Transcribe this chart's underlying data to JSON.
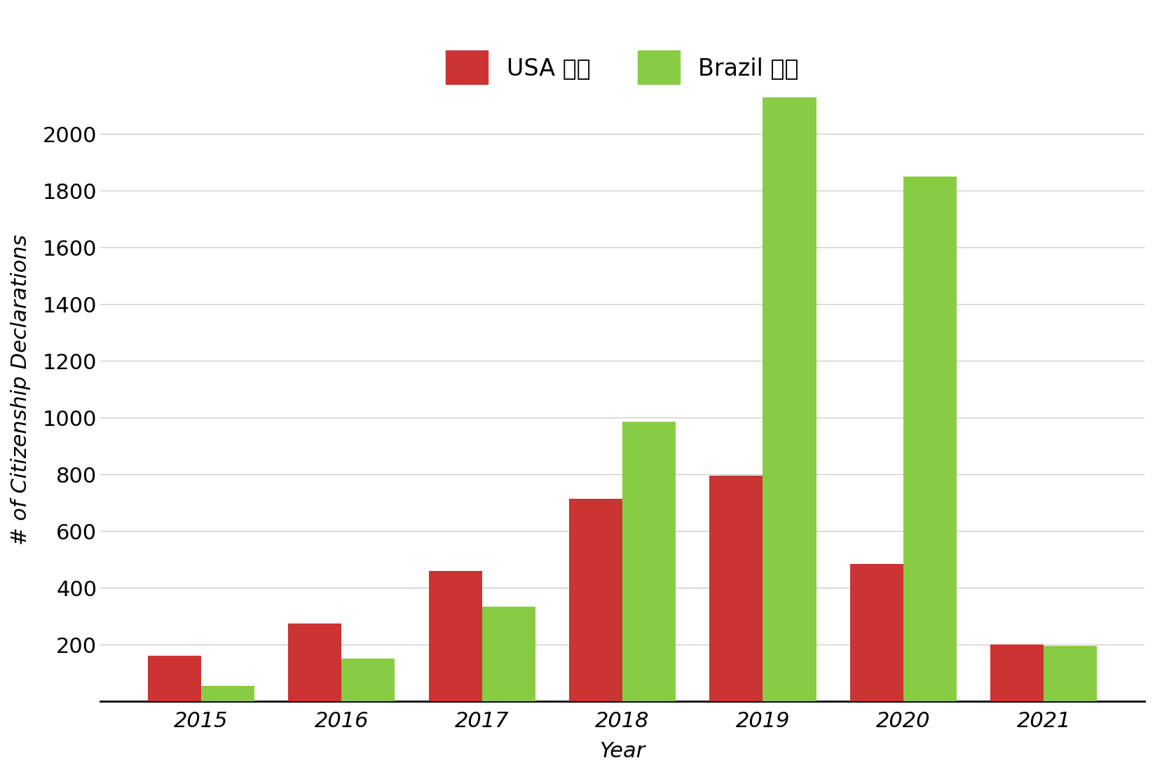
{
  "years": [
    2015,
    2016,
    2017,
    2018,
    2019,
    2020,
    2021
  ],
  "usa_values": [
    160,
    275,
    460,
    715,
    795,
    485,
    200
  ],
  "brazil_values": [
    55,
    150,
    335,
    985,
    2130,
    1850,
    195
  ],
  "usa_color": "#cc3333",
  "brazil_color": "#88cc44",
  "ylabel": "# of Citizenship Declarations",
  "xlabel": "Year",
  "ylim": [
    0,
    2200
  ],
  "yticks": [
    200,
    400,
    600,
    800,
    1000,
    1200,
    1400,
    1600,
    1800,
    2000
  ],
  "usa_label": "USA 🇺🇸",
  "brazil_label": "Brazil 🇧🇷",
  "bar_width": 0.38,
  "background_color": "#ffffff",
  "grid_color": "#cccccc"
}
